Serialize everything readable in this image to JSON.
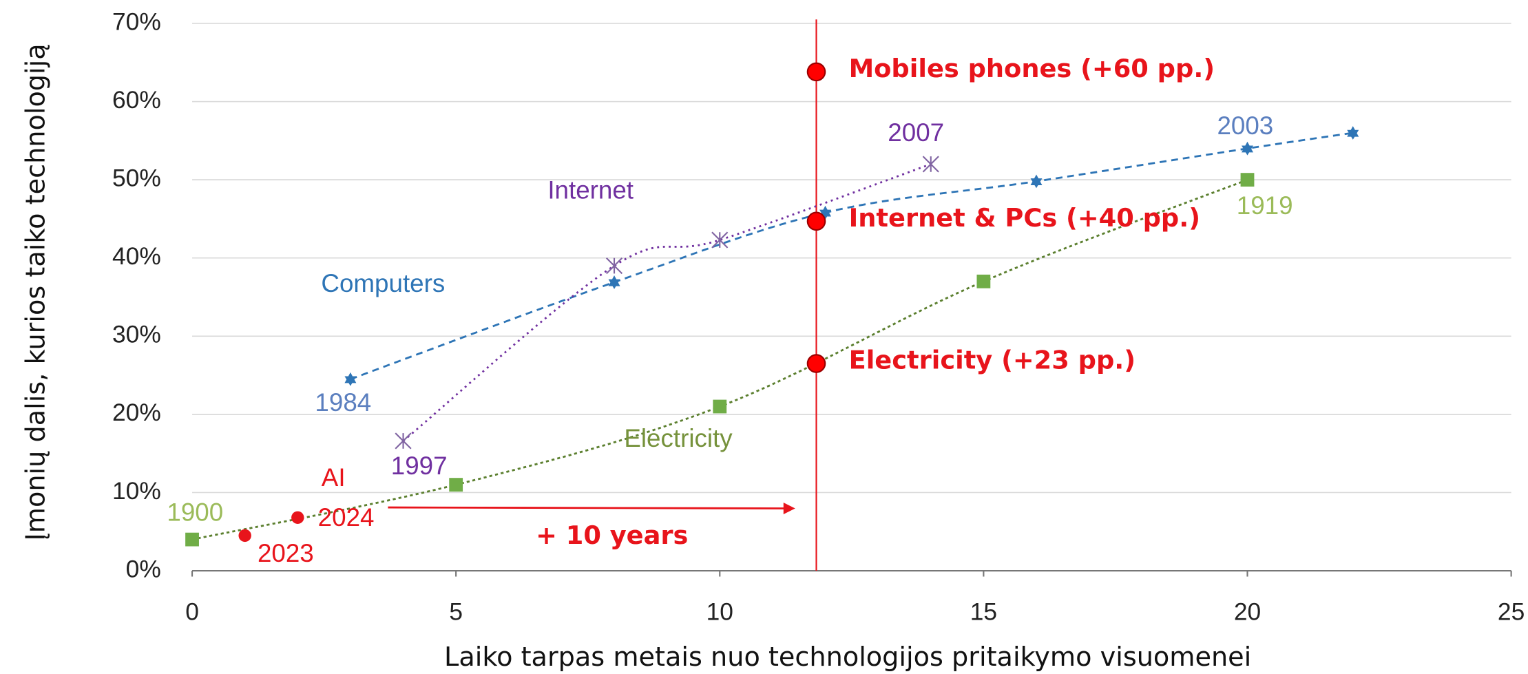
{
  "chart_data": {
    "type": "line",
    "xlabel": "Laiko tarpas metais nuo technologijos pritaikymo visuomenei",
    "ylabel": "Įmonių dalis, kurios taiko technologiją",
    "xlim": [
      0,
      25
    ],
    "xticks": [
      0,
      5,
      10,
      15,
      20,
      25
    ],
    "ylim": [
      0,
      70
    ],
    "yticks": [
      {
        "value": 0,
        "label": "0%"
      },
      {
        "value": 10,
        "label": "10%"
      },
      {
        "value": 20,
        "label": "20%"
      },
      {
        "value": 30,
        "label": "30%"
      },
      {
        "value": 40,
        "label": "40%"
      },
      {
        "value": 50,
        "label": "50%"
      },
      {
        "value": 60,
        "label": "60%"
      },
      {
        "value": 70,
        "label": "70%"
      }
    ],
    "grid": true,
    "series": [
      {
        "name": "Computers",
        "color": "#2e75b6",
        "x": [
          3,
          8,
          12,
          16,
          20,
          22
        ],
        "values": [
          24.5,
          36.9,
          45.8,
          49.8,
          54,
          56
        ]
      },
      {
        "name": "Internet",
        "color": "#7030a0",
        "x": [
          4,
          8,
          10,
          14
        ],
        "values": [
          16.6,
          39,
          42.3,
          52
        ]
      },
      {
        "name": "Electricity",
        "color": "#70ad47",
        "x": [
          0,
          5,
          10,
          15,
          20
        ],
        "values": [
          4,
          11,
          21,
          37,
          50
        ]
      },
      {
        "name": "AI",
        "color": "#e8141b",
        "x": [
          1,
          2
        ],
        "values": [
          4.5,
          6.8
        ]
      }
    ],
    "annotations": [
      "1984",
      "1997",
      "2007",
      "2003",
      "1900",
      "1919",
      "2023",
      "2024"
    ],
    "reference_line": {
      "x": 11.83,
      "color": "#e8141b",
      "values": [
        63.8,
        44.7,
        26.5
      ],
      "labels": [
        "Mobiles phones (+60 pp.)",
        "Internet & PCs (+40 pp.)",
        "Electricity (+23 pp.)"
      ]
    },
    "arrow_label": "+ 10 years"
  }
}
